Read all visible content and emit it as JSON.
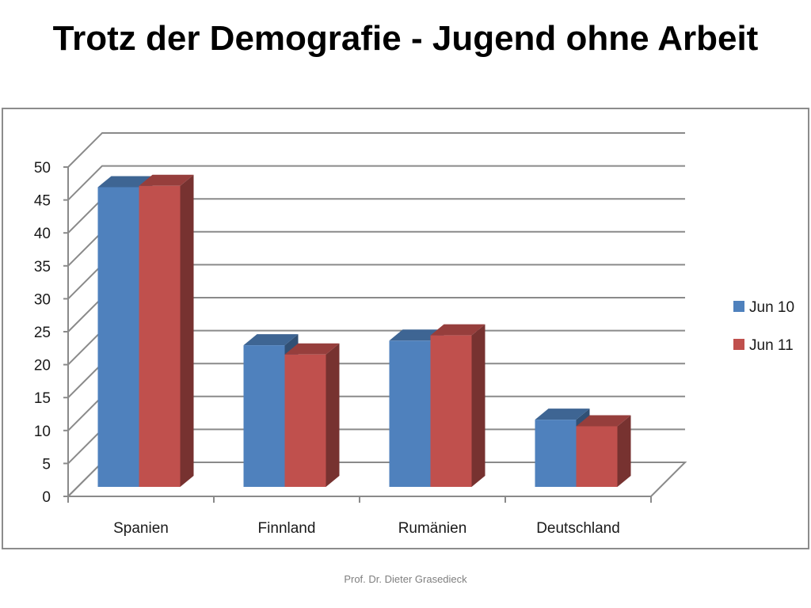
{
  "slide": {
    "title": "Trotz der Demografie - Jugend ohne Arbeit",
    "footer": "Prof. Dr. Dieter Grasedieck"
  },
  "chart_data": {
    "type": "bar",
    "variant": "3d-clustered-column",
    "categories": [
      "Spanien",
      "Finnland",
      "Rumänien",
      "Deutschland"
    ],
    "series": [
      {
        "name": "Jun 10",
        "color": "#4f81bd",
        "values": [
          45.5,
          21.5,
          22.2,
          10.2
        ]
      },
      {
        "name": "Jun 11",
        "color": "#c0504d",
        "values": [
          45.7,
          20.1,
          23.0,
          9.2
        ]
      }
    ],
    "yticks": [
      0,
      5,
      10,
      15,
      20,
      25,
      30,
      35,
      40,
      45,
      50
    ],
    "ylim": [
      0,
      50
    ],
    "grid": true,
    "legend": "right",
    "xlabel": "",
    "ylabel": ""
  }
}
